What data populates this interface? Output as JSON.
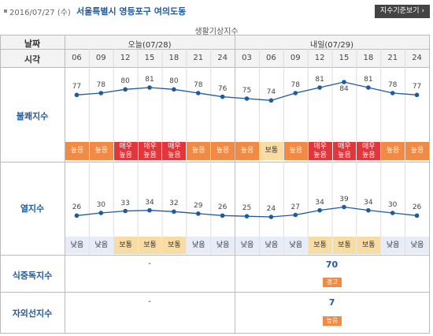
{
  "header": {
    "date": "2016/07/27 (수)",
    "location": "서울특별시 영등포구 여의도동",
    "guide_button": "지수기준보기",
    "guide_arrow": "›"
  },
  "table_title": "생활기상지수",
  "labels": {
    "date_col": "날짜",
    "time_col": "시각",
    "discomfort": "불쾌지수",
    "heat": "열지수",
    "food": "식중독지수",
    "uv": "자외선지수"
  },
  "days": [
    {
      "label": "오늘(07/28)"
    },
    {
      "label": "내일(07/29)"
    }
  ],
  "times": [
    "06",
    "09",
    "12",
    "15",
    "18",
    "21",
    "24",
    "03",
    "06",
    "09",
    "12",
    "15",
    "18",
    "21",
    "24"
  ],
  "discomfort": {
    "values": [
      77,
      78,
      80,
      81,
      80,
      78,
      76,
      75,
      74,
      78,
      81,
      84,
      81,
      78,
      77
    ],
    "levels": [
      "높음",
      "높음",
      "매우\n높음",
      "매우\n높음",
      "매우\n높음",
      "높음",
      "높음",
      "높음",
      "보통",
      "높음",
      "매우\n높음",
      "매우\n높음",
      "매우\n높음",
      "높음",
      "높음"
    ],
    "label_below": [
      false,
      false,
      false,
      false,
      false,
      false,
      false,
      false,
      false,
      false,
      false,
      true,
      false,
      false,
      false
    ]
  },
  "heat": {
    "values": [
      26,
      30,
      33,
      34,
      32,
      29,
      26,
      25,
      24,
      27,
      34,
      39,
      34,
      30,
      26
    ],
    "levels": [
      "낮음",
      "낮음",
      "보통",
      "보통",
      "보통",
      "낮음",
      "낮음",
      "낮음",
      "낮음",
      "낮음",
      "보통",
      "보통",
      "보통",
      "낮음",
      "낮음"
    ]
  },
  "food": {
    "today": "-",
    "tomorrow": "70",
    "tomorrow_level": "경고"
  },
  "uv": {
    "today": "-",
    "tomorrow": "7",
    "tomorrow_level": "높음"
  },
  "colors": {
    "high": "#f08a44",
    "very_high": "#e0373c",
    "normal": "#f8dca4",
    "low": "#e7ecf8",
    "line": "#1e5aa0"
  }
}
